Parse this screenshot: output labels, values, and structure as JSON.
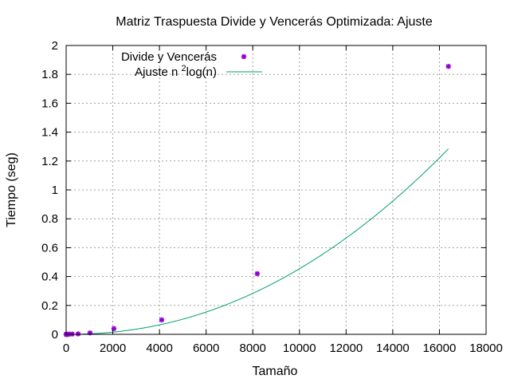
{
  "chart_data": {
    "type": "scatter",
    "title": "Matriz Traspuesta Divide y Vencerás Optimizada: Ajuste",
    "xlabel": "Tamaño",
    "ylabel": "Tiempo (seg)",
    "xlim": [
      0,
      18000
    ],
    "ylim": [
      0,
      2
    ],
    "xticks": [
      "0",
      "2000",
      "4000",
      "6000",
      "8000",
      "10000",
      "12000",
      "14000",
      "16000",
      "18000"
    ],
    "yticks": [
      "0",
      "0.2",
      "0.4",
      "0.6",
      "0.8",
      "1",
      "1.2",
      "1.4",
      "1.6",
      "1.8",
      "2"
    ],
    "grid": true,
    "legend_position": "top-left",
    "series": [
      {
        "name": "Divide y Vencerás",
        "kind": "points",
        "color": "#9400d3",
        "x": [
          2,
          4,
          8,
          16,
          32,
          64,
          128,
          256,
          512,
          1024,
          2048,
          4096,
          8192,
          16384
        ],
        "y": [
          0,
          0,
          0,
          0,
          0,
          0,
          0.001,
          0.002,
          0.003,
          0.01,
          0.04,
          0.1,
          0.42,
          1.855
        ]
      },
      {
        "name_prefix": "Ajuste n ",
        "name_sup": "2",
        "name_suffix": "log(n)",
        "kind": "line",
        "color": "#009e73",
        "coef": 4.93e-10
      }
    ]
  }
}
